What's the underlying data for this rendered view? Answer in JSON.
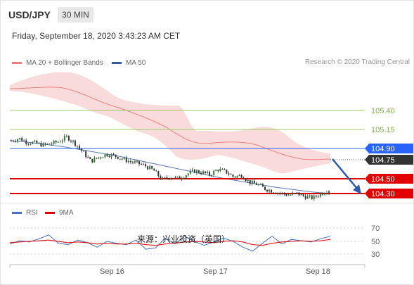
{
  "header": {
    "symbol": "USD/JPY",
    "timeframe": "30 MIN",
    "datetime": "Friday, September 18, 2020 3:43:23 AM CET"
  },
  "legend": {
    "bollinger_label": "MA 20 + Bollinger Bands",
    "ma50_label": "MA 50",
    "credit": "Research © 2020 Trading Central"
  },
  "colors": {
    "bollinger": "#f08080",
    "ma50": "#2e5aa8",
    "resistance": "#9ccc65",
    "support": "#e00000",
    "current": "#333333",
    "pivot": "#2962ff",
    "arrow": "#2e5aa8",
    "rsi": "#4472c4",
    "rsi_ma": "#e00000"
  },
  "watermark": "来源：兴业投资（英国）",
  "chart_data": {
    "type": "line",
    "title": "USD/JPY",
    "x_tick_labels": [
      "Sep 16",
      "Sep 17",
      "Sep 18"
    ],
    "price_levels": [
      {
        "label": "105.40",
        "value": 105.4,
        "kind": "resistance"
      },
      {
        "label": "105.15",
        "value": 105.15,
        "kind": "resistance"
      },
      {
        "label": "104.90",
        "value": 104.9,
        "kind": "pivot"
      },
      {
        "label": "104.75",
        "value": 104.75,
        "kind": "current"
      },
      {
        "label": "104.50",
        "value": 104.5,
        "kind": "support"
      },
      {
        "label": "104.30",
        "value": 104.3,
        "kind": "support"
      }
    ],
    "price_series": [
      105.0,
      105.03,
      104.98,
      104.97,
      104.94,
      104.96,
      104.99,
      105.05,
      104.97,
      104.85,
      104.73,
      104.78,
      104.82,
      104.8,
      104.76,
      104.72,
      104.7,
      104.66,
      104.6,
      104.48,
      104.52,
      104.5,
      104.55,
      104.6,
      104.58,
      104.55,
      104.62,
      104.59,
      104.52,
      104.54,
      104.45,
      104.42,
      104.36,
      104.33,
      104.3,
      104.28,
      104.3,
      104.26,
      104.24,
      104.3,
      104.35
    ],
    "ma50_series": [
      105.0,
      104.98,
      104.95,
      104.92,
      104.88,
      104.84,
      104.8,
      104.75,
      104.7,
      104.65,
      104.6,
      104.55,
      104.5,
      104.46,
      104.42,
      104.38,
      104.35,
      104.32,
      104.3
    ],
    "rsi_panel": {
      "legend": [
        "RSI",
        "9MA"
      ],
      "y_tick_labels": [
        "70",
        "50",
        "30"
      ],
      "levels": [
        70,
        50,
        30
      ],
      "rsi_values": [
        46,
        51,
        49,
        54,
        60,
        47,
        45,
        52,
        48,
        41,
        50,
        47,
        45,
        52,
        38,
        40,
        55,
        46,
        58,
        50,
        44,
        49,
        55,
        50,
        41,
        35,
        47,
        58,
        46,
        53,
        51,
        49,
        54,
        58
      ],
      "ma_values": [
        48,
        49,
        50,
        51,
        52,
        50,
        48,
        49,
        48,
        46,
        47,
        46,
        46,
        47,
        45,
        44,
        46,
        47,
        49,
        50,
        49,
        48,
        50,
        51,
        49,
        45,
        44,
        47,
        49,
        50,
        51,
        50,
        51,
        53
      ]
    }
  }
}
